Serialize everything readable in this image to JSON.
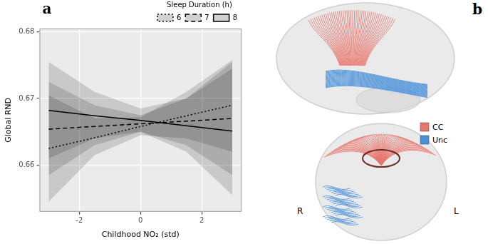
{
  "chart_data": {
    "type": "line",
    "title": "a",
    "x_label": "Childhood NO₂ (std)",
    "y_label": "Global RND",
    "legend_title": "Sleep Duration (h)",
    "legend": "top-right",
    "grid": true,
    "x": [
      -3,
      -1.5,
      0,
      1.5,
      3
    ],
    "series": [
      {
        "name": "6",
        "color": "#000000",
        "line_style": "dotted",
        "values": [
          0.6625,
          0.6641,
          0.6658,
          0.6674,
          0.669
        ],
        "lower": [
          0.6545,
          0.6615,
          0.6645,
          0.664,
          0.662
        ],
        "upper": [
          0.6705,
          0.667,
          0.6672,
          0.671,
          0.6758
        ]
      },
      {
        "name": "7",
        "color": "#000000",
        "line_style": "dashed",
        "values": [
          0.6654,
          0.6658,
          0.6662,
          0.6666,
          0.667
        ],
        "lower": [
          0.6585,
          0.663,
          0.665,
          0.663,
          0.6585
        ],
        "upper": [
          0.6725,
          0.669,
          0.6675,
          0.67,
          0.6755
        ]
      },
      {
        "name": "8",
        "color": "#000000",
        "line_style": "solid",
        "values": [
          0.6682,
          0.6674,
          0.6667,
          0.6659,
          0.6651
        ],
        "lower": [
          0.661,
          0.664,
          0.665,
          0.662,
          0.6555
        ],
        "upper": [
          0.6755,
          0.671,
          0.6685,
          0.67,
          0.6745
        ]
      }
    ],
    "xlim": [
      -3.3,
      3.3
    ],
    "xticks": [
      -2,
      0,
      2
    ],
    "ylim": [
      0.653,
      0.6805
    ],
    "yticks": [
      0.66,
      0.67,
      0.68
    ]
  },
  "panel_b": {
    "label": "b",
    "legend": [
      {
        "name": "CC",
        "color": "#e8766d"
      },
      {
        "name": "Unc",
        "color": "#4a90d9"
      }
    ],
    "side_labels": [
      "R",
      "L"
    ]
  }
}
